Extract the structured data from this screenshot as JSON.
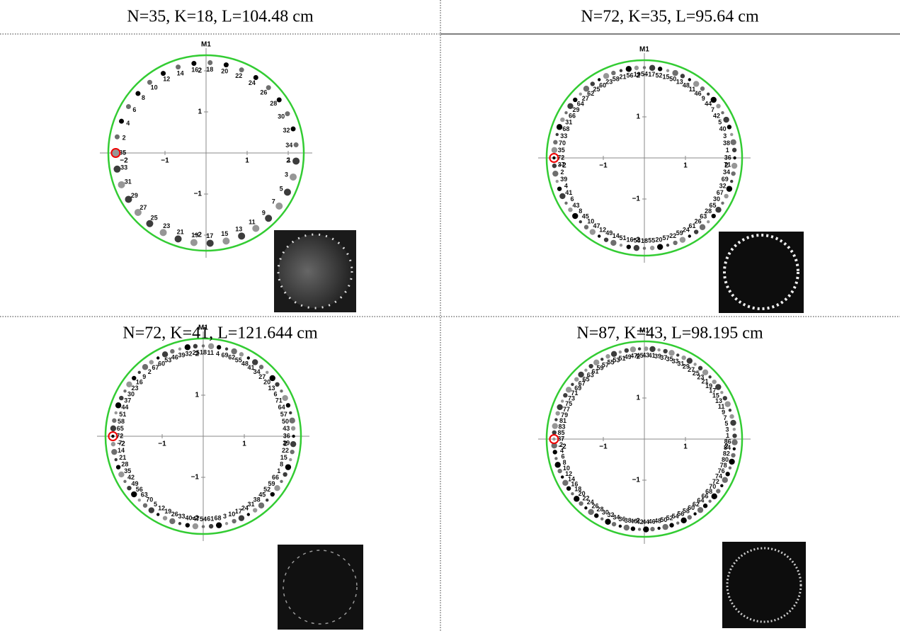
{
  "axes": {
    "label": "M1",
    "xticks": [
      {
        "value": -2,
        "label": "−2"
      },
      {
        "value": -1,
        "label": "−1"
      },
      1,
      2
    ],
    "yticks": [
      {
        "value": -2,
        "label": "−2"
      },
      {
        "value": -1,
        "label": "−1"
      },
      1,
      2
    ]
  },
  "panels": [
    {
      "title": "N=35, K=18, L=104.48 cm",
      "K": 18,
      "point_labels": [
        1,
        2,
        3,
        4,
        5,
        6,
        7,
        8,
        9,
        10,
        11,
        12,
        13,
        14,
        15,
        16,
        17,
        18,
        19,
        20,
        21,
        22,
        23,
        24,
        25,
        26,
        27,
        28,
        29,
        30,
        31,
        32,
        33,
        34,
        35
      ]
    },
    {
      "title": "N=72, K=35, L=95.64 cm",
      "K": 35,
      "point_labels": [
        1,
        2,
        3,
        4,
        5,
        6,
        7,
        8,
        9,
        10,
        11,
        12,
        13,
        14,
        15,
        16,
        17,
        18,
        19,
        20,
        21,
        22,
        23,
        24,
        25,
        26,
        27,
        28,
        29,
        30,
        31,
        32,
        33,
        34,
        35,
        36,
        37,
        38,
        39,
        40,
        41,
        42,
        43,
        44,
        45,
        46,
        47,
        48,
        49,
        50,
        51,
        52,
        53,
        54,
        55,
        56,
        57,
        58,
        59,
        60,
        61,
        62,
        63,
        64,
        65,
        66,
        67,
        68,
        69,
        70,
        71,
        72
      ]
    },
    {
      "title": "N=72, K=41, L=121.644 cm",
      "K": 41,
      "point_labels": [
        1,
        2,
        3,
        4,
        5,
        6,
        7,
        8,
        9,
        10,
        11,
        12,
        13,
        14,
        15,
        16,
        17,
        18,
        19,
        20,
        21,
        22,
        23,
        24,
        25,
        26,
        27,
        28,
        29,
        30,
        31,
        32,
        33,
        34,
        35,
        36,
        37,
        38,
        39,
        40,
        41,
        42,
        43,
        44,
        45,
        46,
        47,
        48,
        49,
        50,
        51,
        52,
        53,
        54,
        55,
        56,
        57,
        58,
        59,
        60,
        61,
        62,
        63,
        64,
        65,
        66,
        67,
        68,
        69,
        70,
        71,
        72
      ]
    },
    {
      "title": "N=87, K=43, L=98.195 cm",
      "K": 43,
      "point_labels": [
        1,
        2,
        3,
        4,
        5,
        6,
        7,
        8,
        9,
        10,
        11,
        12,
        13,
        14,
        15,
        16,
        17,
        18,
        19,
        20,
        21,
        22,
        23,
        24,
        25,
        26,
        27,
        28,
        29,
        30,
        31,
        32,
        33,
        34,
        35,
        36,
        37,
        38,
        39,
        40,
        41,
        42,
        43,
        44,
        45,
        46,
        47,
        48,
        49,
        50,
        51,
        52,
        53,
        54,
        55,
        56,
        57,
        58,
        59,
        60,
        61,
        62,
        63,
        64,
        65,
        66,
        67,
        68,
        69,
        70,
        71,
        72,
        73,
        74,
        75,
        76,
        77,
        78,
        79,
        80,
        81,
        82,
        83,
        84,
        85,
        86,
        87
      ]
    }
  ]
}
